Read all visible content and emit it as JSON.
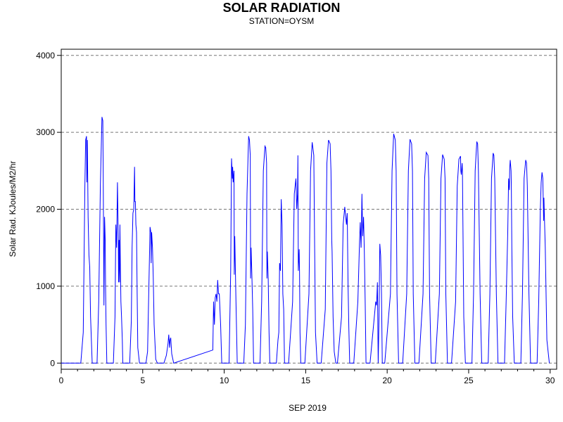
{
  "chart_data": {
    "type": "line",
    "title": "SOLAR RADIATION",
    "subtitle": "STATION=OYSM",
    "xlabel": "SEP 2019",
    "ylabel": "Solar Rad. KJoules/M2/hr",
    "xlim": [
      0,
      30.4
    ],
    "ylim": [
      -80,
      4080
    ],
    "x_ticks": [
      0,
      5,
      10,
      15,
      20,
      25,
      30
    ],
    "y_ticks": [
      0,
      1000,
      2000,
      3000,
      4000
    ],
    "grid": "horizontal-dashed",
    "line_color": "#0000ff",
    "series": [
      {
        "x": [
          0,
          1.2,
          1.35,
          1.45,
          1.5,
          1.55,
          1.57,
          1.6,
          1.65,
          1.7,
          1.75,
          1.8,
          1.9,
          2.0,
          2.2,
          2.3,
          2.4,
          2.5,
          2.55,
          2.58,
          2.62,
          2.66,
          2.7,
          2.72,
          2.75,
          2.8,
          3.0,
          3.2,
          3.3,
          3.35,
          3.4,
          3.45,
          3.5,
          3.52,
          3.55,
          3.58,
          3.6,
          3.63,
          3.66,
          3.7,
          3.75,
          3.78,
          3.82,
          3.9,
          4.0,
          4.2,
          4.3,
          4.35,
          4.4,
          4.45,
          4.5,
          4.52,
          4.55,
          4.58,
          4.62,
          4.66,
          4.7,
          4.8,
          4.9,
          5.2,
          5.3,
          5.4,
          5.45,
          5.5,
          5.52,
          5.55,
          5.6,
          5.65,
          5.7,
          5.8,
          5.9,
          6.3,
          6.45,
          6.55,
          6.6,
          6.65,
          6.68,
          6.72,
          6.78,
          6.9,
          9.3,
          9.35,
          9.4,
          9.45,
          9.5,
          9.55,
          9.6,
          9.65,
          9.7,
          9.78,
          9.85,
          10.2,
          10.3,
          10.4,
          10.45,
          10.5,
          10.52,
          10.55,
          10.6,
          10.62,
          10.65,
          10.68,
          10.72,
          10.8,
          10.95,
          11.2,
          11.3,
          11.4,
          11.5,
          11.55,
          11.6,
          11.62,
          11.65,
          11.7,
          11.75,
          11.8,
          11.95,
          12.2,
          12.3,
          12.4,
          12.5,
          12.55,
          12.6,
          12.62,
          12.65,
          12.7,
          12.75,
          12.8,
          12.95,
          13.2,
          13.3,
          13.35,
          13.4,
          13.45,
          13.5,
          13.55,
          13.6,
          13.65,
          13.7,
          13.8,
          13.95,
          14.2,
          14.3,
          14.4,
          14.45,
          14.5,
          14.52,
          14.55,
          14.6,
          14.62,
          14.65,
          14.7,
          14.8,
          14.95,
          15.2,
          15.3,
          15.4,
          15.5,
          15.55,
          15.6,
          15.7,
          15.8,
          15.95,
          16.2,
          16.3,
          16.4,
          16.5,
          16.55,
          16.6,
          16.62,
          16.68,
          16.75,
          16.85,
          16.95,
          17.2,
          17.3,
          17.4,
          17.5,
          17.55,
          17.6,
          17.65,
          17.7,
          17.8,
          17.95,
          18.2,
          18.3,
          18.35,
          18.4,
          18.45,
          18.5,
          18.55,
          18.6,
          18.65,
          18.7,
          18.8,
          18.95,
          19.3,
          19.35,
          19.4,
          19.45,
          19.5,
          19.55,
          19.6,
          19.65,
          19.7,
          19.78,
          19.85,
          20.2,
          20.3,
          20.4,
          20.5,
          20.55,
          20.6,
          20.7,
          20.8,
          20.95,
          21.2,
          21.3,
          21.4,
          21.5,
          21.55,
          21.6,
          21.7,
          21.8,
          21.95,
          22.2,
          22.3,
          22.4,
          22.5,
          22.55,
          22.6,
          22.7,
          22.8,
          22.95,
          23.2,
          23.3,
          23.4,
          23.5,
          23.55,
          23.6,
          23.7,
          23.8,
          23.95,
          24.2,
          24.3,
          24.4,
          24.5,
          24.52,
          24.55,
          24.6,
          24.62,
          24.65,
          24.7,
          24.8,
          24.95,
          25.2,
          25.3,
          25.4,
          25.5,
          25.55,
          25.6,
          25.7,
          25.8,
          25.95,
          26.2,
          26.3,
          26.4,
          26.5,
          26.55,
          26.6,
          26.7,
          26.8,
          26.95,
          27.2,
          27.3,
          27.4,
          27.45,
          27.5,
          27.52,
          27.55,
          27.6,
          27.62,
          27.65,
          27.7,
          27.8,
          27.95,
          28.2,
          28.3,
          28.4,
          28.5,
          28.55,
          28.6,
          28.7,
          28.8,
          28.95,
          29.2,
          29.3,
          29.4,
          29.45,
          29.5,
          29.55,
          29.6,
          29.62,
          29.65,
          29.7,
          29.8,
          29.95
        ],
        "y": [
          0,
          0,
          400,
          2300,
          2900,
          2950,
          2350,
          2900,
          1900,
          1400,
          1250,
          600,
          0,
          0,
          0,
          800,
          2300,
          3200,
          3150,
          2400,
          750,
          1900,
          1600,
          1000,
          500,
          0,
          0,
          0,
          600,
          1800,
          1500,
          2350,
          1600,
          1050,
          1600,
          1050,
          1800,
          1250,
          800,
          600,
          300,
          0,
          0,
          0,
          0,
          0,
          550,
          1500,
          1950,
          2000,
          2550,
          2100,
          2100,
          1800,
          1700,
          900,
          200,
          0,
          0,
          0,
          150,
          1250,
          1770,
          1700,
          1300,
          1700,
          1500,
          1100,
          500,
          50,
          0,
          0,
          100,
          250,
          370,
          200,
          300,
          330,
          120,
          0,
          170,
          800,
          500,
          850,
          900,
          800,
          1080,
          900,
          900,
          500,
          0,
          0,
          0,
          1200,
          2660,
          2400,
          2550,
          2350,
          2500,
          1150,
          1650,
          1300,
          800,
          0,
          0,
          0,
          500,
          2200,
          2950,
          2900,
          2700,
          1100,
          1500,
          1150,
          700,
          0,
          0,
          0,
          800,
          2500,
          2820,
          2800,
          2600,
          1100,
          1450,
          1100,
          400,
          0,
          0,
          0,
          300,
          400,
          1300,
          1200,
          2130,
          1800,
          900,
          700,
          0,
          0,
          0,
          800,
          2200,
          2400,
          2000,
          2200,
          2700,
          1200,
          1480,
          1200,
          400,
          0,
          0,
          0,
          900,
          2500,
          2870,
          2700,
          1500,
          400,
          0,
          0,
          0,
          700,
          2600,
          2900,
          2850,
          2500,
          1600,
          1450,
          600,
          150,
          0,
          0,
          600,
          1800,
          2030,
          1800,
          1950,
          1000,
          450,
          0,
          0,
          0,
          800,
          1550,
          1830,
          1500,
          2200,
          1650,
          1900,
          1450,
          800,
          0,
          0,
          0,
          800,
          750,
          1050,
          0,
          600,
          1550,
          1400,
          900,
          0,
          0,
          0,
          900,
          2500,
          2980,
          2900,
          2500,
          900,
          0,
          0,
          0,
          900,
          2500,
          2910,
          2850,
          2500,
          900,
          0,
          0,
          0,
          900,
          2400,
          2740,
          2700,
          2400,
          900,
          0,
          0,
          0,
          900,
          2400,
          2710,
          2650,
          2400,
          900,
          0,
          0,
          0,
          800,
          2300,
          2650,
          2690,
          2500,
          2450,
          2600,
          2500,
          1800,
          600,
          0,
          0,
          0,
          900,
          2500,
          2880,
          2850,
          2500,
          900,
          0,
          0,
          0,
          900,
          2400,
          2730,
          2700,
          2400,
          900,
          0,
          0,
          0,
          800,
          1700,
          2400,
          2250,
          2530,
          2640,
          2500,
          2300,
          1500,
          600,
          0,
          0,
          0,
          900,
          2400,
          2640,
          2600,
          2300,
          900,
          0,
          0,
          0,
          800,
          2000,
          2350,
          2480,
          2400,
          1850,
          2150,
          1900,
          1500,
          300,
          0
        ]
      }
    ]
  }
}
